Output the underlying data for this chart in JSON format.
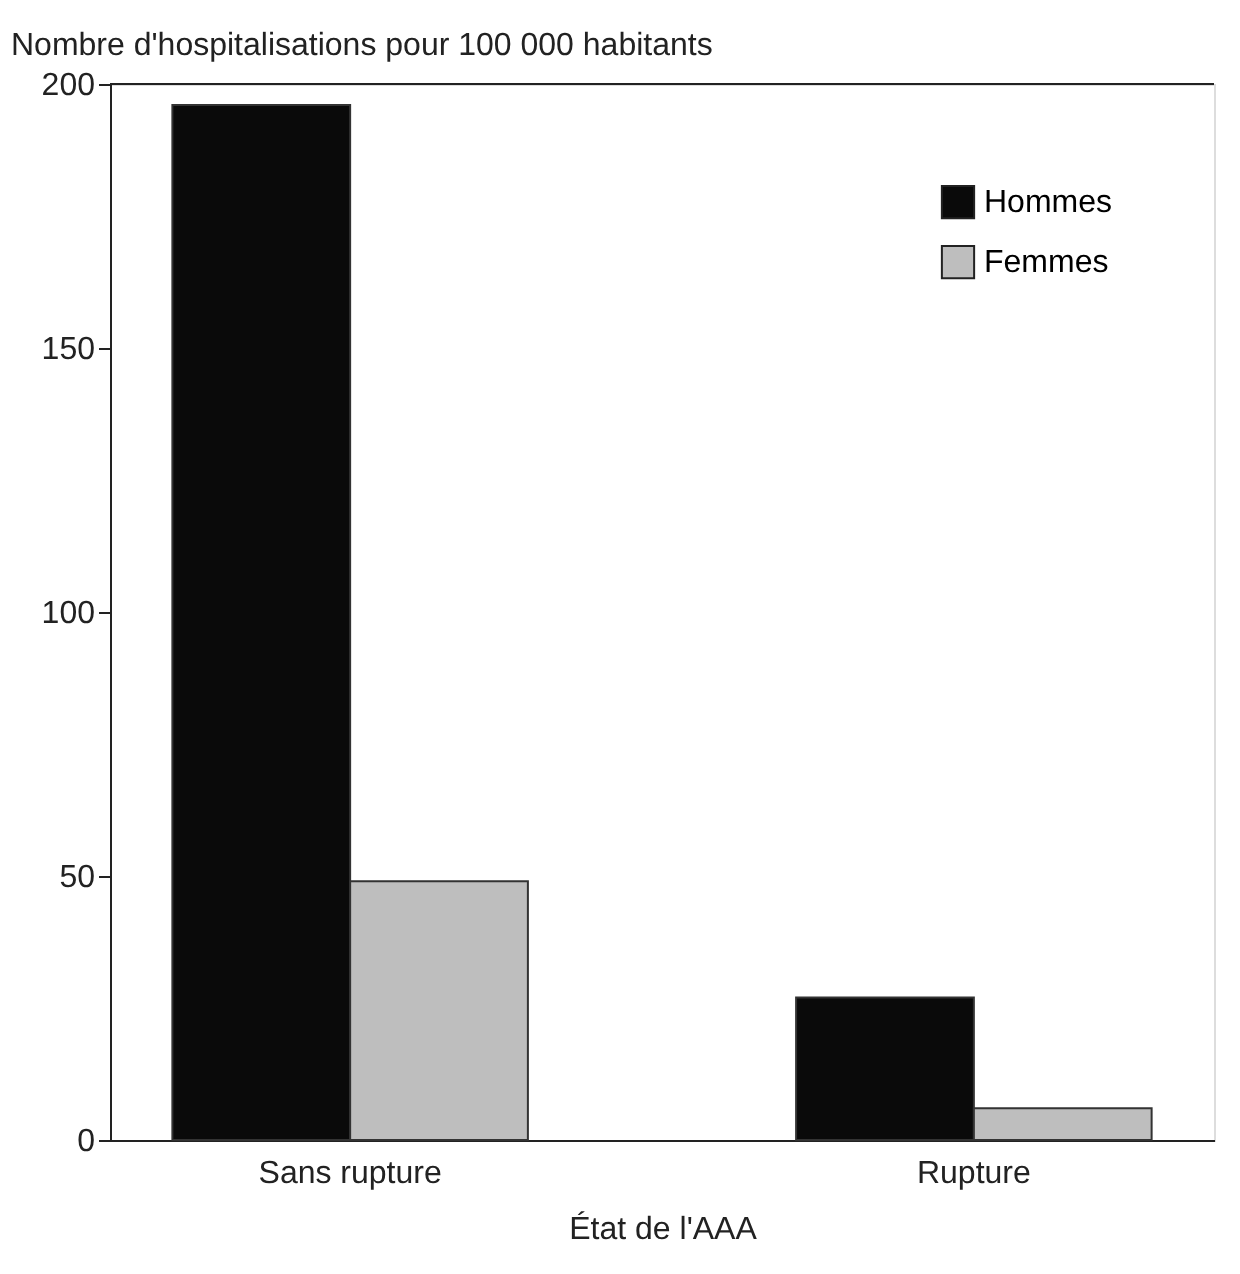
{
  "chart_data": {
    "type": "bar",
    "xlabel": "État de l'AAA",
    "ylabel": "Nombre d'hospitalisations pour 100 000 habitants",
    "categories": [
      "Sans rupture",
      "Rupture"
    ],
    "series": [
      {
        "name": "Hommes",
        "color": "#0a0a0a",
        "values": [
          196,
          27
        ]
      },
      {
        "name": "Femmes",
        "color": "#bebebe",
        "values": [
          49,
          6
        ]
      }
    ],
    "ylim": [
      0,
      200
    ],
    "yticks": [
      0,
      50,
      100,
      150,
      200
    ],
    "grid": false,
    "legend": "top right"
  }
}
